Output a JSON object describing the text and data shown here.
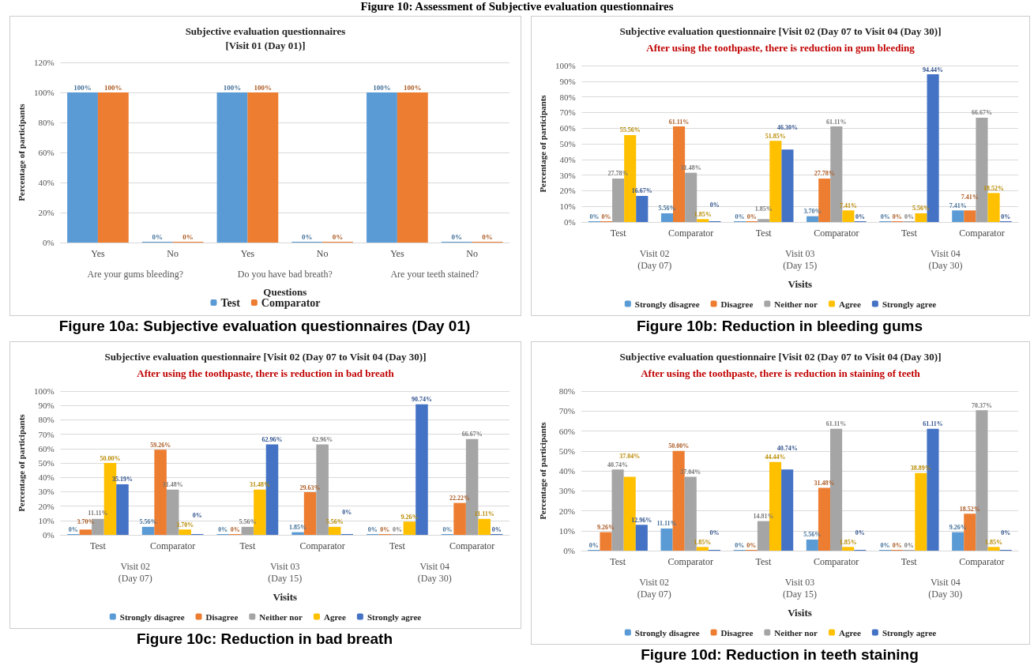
{
  "chart_data": [
    {
      "type": "bar",
      "title": "Subjective evaluation questionnaires\n[Visit 01 (Day 01)]",
      "xlabel": "Questions",
      "ylabel": "Percentage of participants",
      "categories": [
        "Yes",
        "No",
        "Yes",
        "No",
        "Yes",
        "No"
      ],
      "series": [
        {
          "name": "Test",
          "color": "#5b9bd5",
          "values": [
            100,
            0,
            100,
            0,
            100,
            0
          ],
          "value_labels": [
            "100%",
            "0%",
            "100%",
            "0%",
            "100%",
            "0%"
          ]
        },
        {
          "name": "Comparator",
          "color": "#ed7d31",
          "values": [
            100,
            0,
            100,
            0,
            100,
            0
          ],
          "value_labels": [
            "100%",
            "0%",
            "100%",
            "0%",
            "100%",
            "0%"
          ]
        }
      ],
      "ylim": [
        0,
        120
      ],
      "yticks": [
        {
          "value": 0,
          "label": "0%"
        },
        {
          "value": 20,
          "label": "20%"
        },
        {
          "value": 40,
          "label": "40%"
        },
        {
          "value": 60,
          "label": "60%"
        },
        {
          "value": 80,
          "label": "80%"
        },
        {
          "value": 100,
          "label": "100%"
        },
        {
          "value": 120,
          "label": "120%"
        }
      ],
      "grid": "y",
      "legend": "bottom",
      "annotations": [
        "Are your gums bleeding?",
        "Do you have bad breath?",
        "Are your teeth stained?",
        "Figure 10a: Subjective evaluation questionnaires (Day 01)",
        "Figure 10: Assessment of Subjective evaluation questionnaires"
      ]
    },
    {
      "type": "bar",
      "title": "Subjective evaluation questionnaire [Visit 02 (Day 07 to Visit 04 (Day 30)]",
      "subtitle": "After using the toothpaste, there is reduction in gum bleeding",
      "xlabel": "Visits",
      "ylabel": "Percentage of participants",
      "categories": [
        "Test",
        "Comparator",
        "Test",
        "Comparator",
        "Test",
        "Comparator"
      ],
      "series": [
        {
          "name": "Strongly disagree",
          "color": "#5b9bd5",
          "values": [
            0,
            5.56,
            0,
            3.7,
            0,
            7.41
          ],
          "value_labels": [
            "0%",
            "5.56%",
            "0%",
            "3.70%",
            "0%",
            "7.41%"
          ]
        },
        {
          "name": "Disagree",
          "color": "#ed7d31",
          "values": [
            0,
            61.11,
            0,
            27.78,
            0,
            7.41
          ],
          "value_labels": [
            "0%",
            "61.11%",
            "0%",
            "27.78%",
            "0%",
            "7.41%"
          ]
        },
        {
          "name": "Neither nor",
          "color": "#a5a5a5",
          "values": [
            27.78,
            31.48,
            1.85,
            61.11,
            0,
            66.67
          ],
          "value_labels": [
            "27.78%",
            "31.48%",
            "1.85%",
            "61.11%",
            "0%",
            "66.67%"
          ]
        },
        {
          "name": "Agree",
          "color": "#ffc000",
          "values": [
            55.56,
            1.85,
            51.85,
            7.41,
            5.56,
            18.52
          ],
          "value_labels": [
            "55.56%",
            "1.85%",
            "51.85%",
            "7.41%",
            "5.56%",
            "18.52%"
          ]
        },
        {
          "name": "Strongly agree",
          "color": "#4472c4",
          "values": [
            16.67,
            0,
            46.3,
            0,
            94.44,
            0
          ],
          "value_labels": [
            "16.67%",
            "0%",
            "46.30%",
            "0%",
            "94.44%",
            "0%"
          ]
        }
      ],
      "ylim": [
        0,
        100
      ],
      "yticks": [
        {
          "value": 0,
          "label": "0%"
        },
        {
          "value": 10,
          "label": "10%"
        },
        {
          "value": 20,
          "label": "20%"
        },
        {
          "value": 30,
          "label": "30%"
        },
        {
          "value": 40,
          "label": "40%"
        },
        {
          "value": 50,
          "label": "50%"
        },
        {
          "value": 60,
          "label": "60%"
        },
        {
          "value": 70,
          "label": "70%"
        },
        {
          "value": 80,
          "label": "80%"
        },
        {
          "value": 90,
          "label": "90%"
        },
        {
          "value": 100,
          "label": "100%"
        }
      ],
      "grid": "y",
      "legend": "bottom",
      "annotations": [
        "Visit 02\n(Day 07)",
        "Visit 03\n(Day 15)",
        "Visit 04\n(Day 30)",
        "Figure 10b: Reduction in bleeding gums"
      ]
    },
    {
      "type": "bar",
      "title": "Subjective evaluation questionnaire [Visit 02 (Day 07 to Visit 04 (Day 30)]",
      "subtitle": "After using the toothpaste, there is reduction in bad breath",
      "xlabel": "Visits",
      "ylabel": "Percentage of participants",
      "categories": [
        "Test",
        "Comparator",
        "Test",
        "Comparator",
        "Test",
        "Comparator"
      ],
      "series": [
        {
          "name": "Strongly disagree",
          "color": "#5b9bd5",
          "values": [
            0,
            5.56,
            0,
            1.85,
            0,
            0
          ],
          "value_labels": [
            "0%",
            "5.56%",
            "0%",
            "1.85%",
            "0%",
            "0%"
          ]
        },
        {
          "name": "Disagree",
          "color": "#ed7d31",
          "values": [
            3.7,
            59.26,
            0,
            29.63,
            0,
            22.22
          ],
          "value_labels": [
            "3.70%",
            "59.26%",
            "0%",
            "29.63%",
            "0%",
            "22.22%"
          ]
        },
        {
          "name": "Neither nor",
          "color": "#a5a5a5",
          "values": [
            11.11,
            31.48,
            5.56,
            62.96,
            0,
            66.67
          ],
          "value_labels": [
            "11.11%",
            "31.48%",
            "5.56%",
            "62.96%",
            "0%",
            "66.67%"
          ]
        },
        {
          "name": "Agree",
          "color": "#ffc000",
          "values": [
            50.0,
            3.7,
            31.48,
            5.56,
            9.26,
            11.11
          ],
          "value_labels": [
            "50.00%",
            "3.70%",
            "31.48%",
            "5.56%",
            "9.26%",
            "11.11%"
          ]
        },
        {
          "name": "Strongly agree",
          "color": "#4472c4",
          "values": [
            35.19,
            0,
            62.96,
            0,
            90.74,
            0
          ],
          "value_labels": [
            "35.19%",
            "0%",
            "62.96%",
            "0%",
            "90.74%",
            "0%"
          ]
        }
      ],
      "ylim": [
        0,
        100
      ],
      "yticks": [
        {
          "value": 0,
          "label": "0%"
        },
        {
          "value": 10,
          "label": "10%"
        },
        {
          "value": 20,
          "label": "20%"
        },
        {
          "value": 30,
          "label": "30%"
        },
        {
          "value": 40,
          "label": "40%"
        },
        {
          "value": 50,
          "label": "50%"
        },
        {
          "value": 60,
          "label": "60%"
        },
        {
          "value": 70,
          "label": "70%"
        },
        {
          "value": 80,
          "label": "80%"
        },
        {
          "value": 90,
          "label": "90%"
        },
        {
          "value": 100,
          "label": "100%"
        }
      ],
      "grid": "y",
      "legend": "bottom",
      "annotations": [
        "Visit 02\n(Day 07)",
        "Visit 03\n(Day 15)",
        "Visit 04\n(Day 30)",
        "Figure 10c: Reduction in bad breath"
      ]
    },
    {
      "type": "bar",
      "title": "Subjective evaluation questionnaire [Visit 02 (Day 07 to Visit 04 (Day 30)]",
      "subtitle": "After using the toothpaste, there is reduction in staining of teeth",
      "xlabel": "Visits",
      "ylabel": "Percentage of participants",
      "categories": [
        "Test",
        "Comparator",
        "Test",
        "Comparator",
        "Test",
        "Comparator"
      ],
      "series": [
        {
          "name": "Strongly disagree",
          "color": "#5b9bd5",
          "values": [
            0,
            11.11,
            0,
            5.56,
            0,
            9.26
          ],
          "value_labels": [
            "0%",
            "11.11%",
            "0%",
            "5.56%",
            "0%",
            "9.26%"
          ]
        },
        {
          "name": "Disagree",
          "color": "#ed7d31",
          "values": [
            9.26,
            50.0,
            0,
            31.48,
            0,
            18.52
          ],
          "value_labels": [
            "9.26%",
            "50.00%",
            "0%",
            "31.48%",
            "0%",
            "18.52%"
          ]
        },
        {
          "name": "Neither nor",
          "color": "#a5a5a5",
          "values": [
            40.74,
            37.04,
            14.81,
            61.11,
            0,
            70.37
          ],
          "value_labels": [
            "40.74%",
            "37.04%",
            "14.81%",
            "61.11%",
            "0%",
            "70.37%"
          ]
        },
        {
          "name": "Agree",
          "color": "#ffc000",
          "values": [
            37.04,
            1.85,
            44.44,
            1.85,
            38.89,
            1.85
          ],
          "value_labels": [
            "37.04%",
            "1.85%",
            "44.44%",
            "1.85%",
            "38.89%",
            "1.85%"
          ]
        },
        {
          "name": "Strongly agree",
          "color": "#4472c4",
          "values": [
            12.96,
            0,
            40.74,
            0,
            61.11,
            0
          ],
          "value_labels": [
            "12.96%",
            "0%",
            "40.74%",
            "0%",
            "61.11%",
            "0%"
          ]
        }
      ],
      "ylim": [
        0,
        80
      ],
      "yticks": [
        {
          "value": 0,
          "label": "0%"
        },
        {
          "value": 10,
          "label": "10%"
        },
        {
          "value": 20,
          "label": "20%"
        },
        {
          "value": 30,
          "label": "30%"
        },
        {
          "value": 40,
          "label": "40%"
        },
        {
          "value": 50,
          "label": "50%"
        },
        {
          "value": 60,
          "label": "60%"
        },
        {
          "value": 70,
          "label": "70%"
        },
        {
          "value": 80,
          "label": "80%"
        }
      ],
      "grid": "y",
      "legend": "bottom",
      "annotations": [
        "Visit 02\n(Day 07)",
        "Visit 03\n(Day 15)",
        "Visit 04\n(Day 30)",
        "Figure 10d: Reduction in teeth staining"
      ]
    }
  ]
}
